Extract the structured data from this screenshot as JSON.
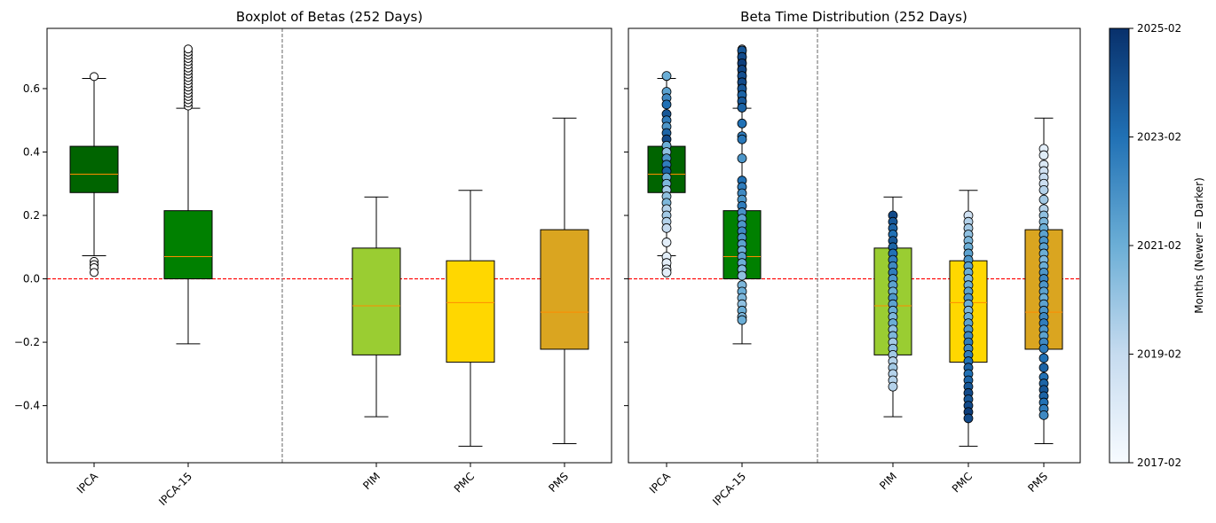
{
  "colors": {
    "IPCA": "#006400",
    "IPCA-15": "#008000",
    "PIM": "#9ACD32",
    "PMC": "#FFD700",
    "PMS": "#DAA520",
    "median": "#FF8C00",
    "zero_line": "#FF0000",
    "separator": "#808080",
    "cmap_light": "#f7fbff",
    "cmap_mid": "#6baed6",
    "cmap_dark": "#08306b"
  },
  "chart_data": [
    {
      "type": "box",
      "title": "Boxplot of Betas (252 Days)",
      "categories": [
        "IPCA",
        "IPCA-15",
        "PIM",
        "PMC",
        "PMS"
      ],
      "ylim": [
        -0.58,
        0.79
      ],
      "yticks": [
        -0.4,
        -0.2,
        0.0,
        0.2,
        0.4,
        0.6
      ],
      "ytick_labels": [
        "−0.4",
        "−0.2",
        "0.0",
        "0.2",
        "0.4",
        "0.6"
      ],
      "zero_line": 0.0,
      "group_separator": "between IPCA-15 and PIM",
      "boxes": [
        {
          "name": "IPCA",
          "whisker_low": 0.073,
          "q1": 0.272,
          "median": 0.33,
          "q3": 0.418,
          "whisker_high": 0.632,
          "outliers": [
            0.638,
            0.055,
            0.045,
            0.035,
            0.02
          ]
        },
        {
          "name": "IPCA-15",
          "whisker_low": -0.205,
          "q1": 0.0,
          "median": 0.07,
          "q3": 0.215,
          "whisker_high": 0.538,
          "outliers": [
            0.545,
            0.555,
            0.565,
            0.575,
            0.585,
            0.595,
            0.605,
            0.615,
            0.625,
            0.635,
            0.645,
            0.655,
            0.665,
            0.675,
            0.685,
            0.695,
            0.705,
            0.715,
            0.725
          ]
        },
        {
          "name": "PIM",
          "whisker_low": -0.435,
          "q1": -0.24,
          "median": -0.085,
          "q3": 0.097,
          "whisker_high": 0.258,
          "outliers": []
        },
        {
          "name": "PMC",
          "whisker_low": -0.528,
          "q1": -0.263,
          "median": -0.075,
          "q3": 0.057,
          "whisker_high": 0.279,
          "outliers": []
        },
        {
          "name": "PMS",
          "whisker_low": -0.52,
          "q1": -0.222,
          "median": -0.105,
          "q3": 0.155,
          "whisker_high": 0.507,
          "outliers": []
        }
      ]
    },
    {
      "type": "box+scatter",
      "title": "Beta Time Distribution (252 Days)",
      "categories": [
        "IPCA",
        "IPCA-15",
        "PIM",
        "PMC",
        "PMS"
      ],
      "ylim": [
        -0.58,
        0.79
      ],
      "zero_line": 0.0,
      "colorbar": {
        "label": "Months (Newer = Darker)",
        "ticks": [
          "2017-02",
          "2019-02",
          "2021-02",
          "2023-02",
          "2025-02"
        ]
      },
      "scatter": [
        {
          "name": "IPCA",
          "y": [
            0.64,
            0.59,
            0.57,
            0.55,
            0.52,
            0.5,
            0.48,
            0.46,
            0.44,
            0.42,
            0.4,
            0.38,
            0.36,
            0.34,
            0.32,
            0.3,
            0.28,
            0.26,
            0.24,
            0.22,
            0.2,
            0.18,
            0.16,
            0.115,
            0.07,
            0.05,
            0.03,
            0.02
          ],
          "t": [
            0.5,
            0.55,
            0.65,
            0.75,
            0.85,
            0.7,
            0.6,
            0.8,
            0.9,
            0.5,
            0.4,
            0.6,
            0.7,
            0.8,
            0.5,
            0.45,
            0.35,
            0.4,
            0.45,
            0.3,
            0.35,
            0.3,
            0.25,
            0.1,
            0.1,
            0.1,
            0.1,
            0.1
          ]
        },
        {
          "name": "IPCA-15",
          "y": [
            0.72,
            0.7,
            0.68,
            0.66,
            0.64,
            0.62,
            0.6,
            0.58,
            0.56,
            0.54,
            0.49,
            0.45,
            0.44,
            0.38,
            0.31,
            0.29,
            0.27,
            0.25,
            0.23,
            0.21,
            0.19,
            0.17,
            0.15,
            0.13,
            0.11,
            0.09,
            0.07,
            0.05,
            0.03,
            0.01,
            -0.02,
            -0.04,
            -0.06,
            -0.08,
            -0.1,
            -0.12,
            -0.13
          ],
          "t": [
            0.85,
            0.9,
            0.95,
            0.92,
            0.88,
            0.9,
            0.85,
            0.8,
            0.85,
            0.8,
            0.75,
            0.7,
            0.72,
            0.6,
            0.75,
            0.7,
            0.65,
            0.6,
            0.7,
            0.62,
            0.55,
            0.6,
            0.65,
            0.6,
            0.55,
            0.5,
            0.55,
            0.5,
            0.45,
            0.4,
            0.45,
            0.5,
            0.45,
            0.4,
            0.5,
            0.45,
            0.5
          ]
        },
        {
          "name": "PIM",
          "y": [
            0.2,
            0.18,
            0.16,
            0.14,
            0.12,
            0.1,
            0.08,
            0.06,
            0.04,
            0.02,
            0.0,
            -0.02,
            -0.04,
            -0.06,
            -0.08,
            -0.1,
            -0.12,
            -0.14,
            -0.16,
            -0.18,
            -0.2,
            -0.22,
            -0.24,
            -0.26,
            -0.28,
            -0.3,
            -0.32,
            -0.34
          ],
          "t": [
            0.9,
            0.85,
            0.8,
            0.75,
            0.85,
            0.8,
            0.75,
            0.7,
            0.65,
            0.7,
            0.6,
            0.55,
            0.5,
            0.6,
            0.55,
            0.5,
            0.45,
            0.5,
            0.4,
            0.45,
            0.35,
            0.4,
            0.35,
            0.3,
            0.35,
            0.3,
            0.3,
            0.3
          ]
        },
        {
          "name": "PMC",
          "y": [
            0.2,
            0.18,
            0.16,
            0.14,
            0.12,
            0.1,
            0.08,
            0.06,
            0.04,
            0.02,
            0.0,
            -0.02,
            -0.04,
            -0.06,
            -0.08,
            -0.1,
            -0.12,
            -0.14,
            -0.16,
            -0.18,
            -0.2,
            -0.22,
            -0.24,
            -0.26,
            -0.28,
            -0.3,
            -0.32,
            -0.34,
            -0.36,
            -0.38,
            -0.4,
            -0.42,
            -0.44
          ],
          "t": [
            0.2,
            0.3,
            0.35,
            0.4,
            0.45,
            0.5,
            0.55,
            0.6,
            0.55,
            0.5,
            0.45,
            0.5,
            0.55,
            0.6,
            0.5,
            0.45,
            0.5,
            0.55,
            0.6,
            0.65,
            0.7,
            0.65,
            0.7,
            0.75,
            0.8,
            0.75,
            0.8,
            0.85,
            0.9,
            0.85,
            0.9,
            0.95,
            0.9
          ]
        },
        {
          "name": "PMS",
          "y": [
            0.41,
            0.39,
            0.36,
            0.34,
            0.32,
            0.3,
            0.28,
            0.25,
            0.22,
            0.2,
            0.18,
            0.16,
            0.14,
            0.12,
            0.1,
            0.08,
            0.06,
            0.04,
            0.02,
            0.0,
            -0.02,
            -0.04,
            -0.06,
            -0.08,
            -0.1,
            -0.12,
            -0.14,
            -0.16,
            -0.18,
            -0.2,
            -0.22,
            -0.25,
            -0.28,
            -0.31,
            -0.33,
            -0.35,
            -0.37,
            -0.39,
            -0.41,
            -0.43
          ],
          "t": [
            0.1,
            0.12,
            0.15,
            0.2,
            0.25,
            0.22,
            0.3,
            0.35,
            0.3,
            0.4,
            0.45,
            0.5,
            0.55,
            0.6,
            0.55,
            0.5,
            0.45,
            0.5,
            0.6,
            0.65,
            0.6,
            0.55,
            0.5,
            0.55,
            0.6,
            0.65,
            0.7,
            0.6,
            0.55,
            0.65,
            0.7,
            0.75,
            0.8,
            0.75,
            0.8,
            0.85,
            0.8,
            0.75,
            0.7,
            0.65
          ]
        }
      ]
    }
  ]
}
